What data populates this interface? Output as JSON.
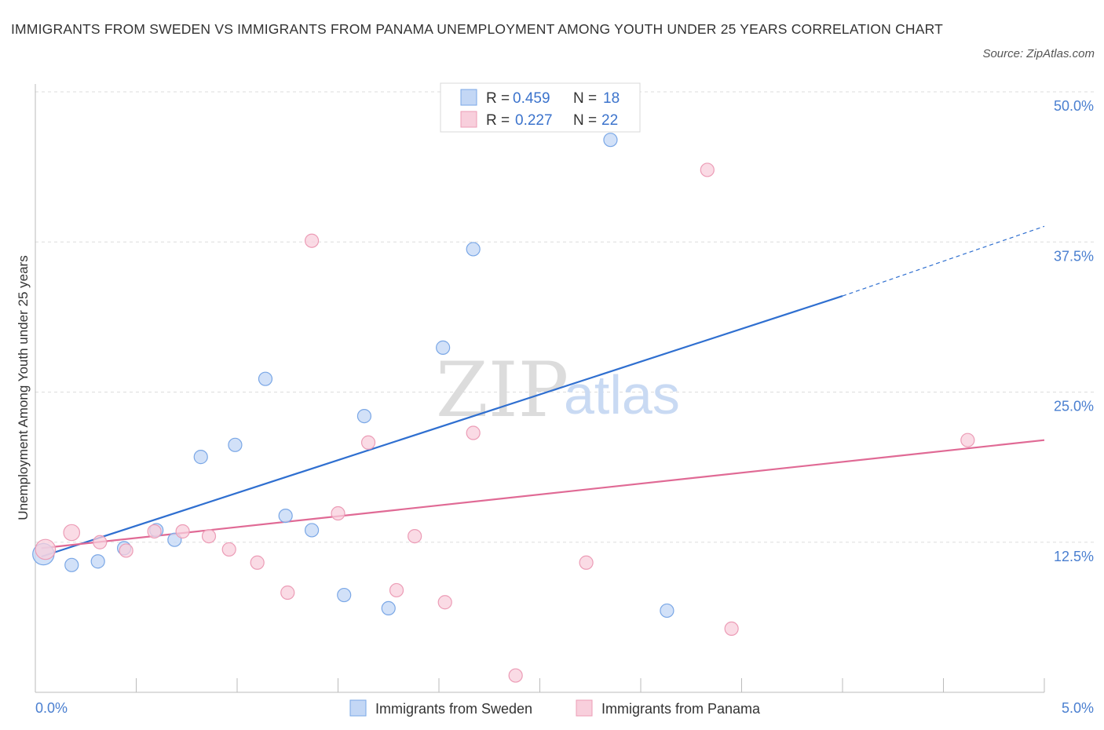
{
  "title": "IMMIGRANTS FROM SWEDEN VS IMMIGRANTS FROM PANAMA UNEMPLOYMENT AMONG YOUTH UNDER 25 YEARS CORRELATION CHART",
  "source": "Source: ZipAtlas.com",
  "watermark": {
    "zip": "ZIP",
    "atlas": "atlas"
  },
  "chart_data": {
    "type": "scatter",
    "title": "IMMIGRANTS FROM SWEDEN VS IMMIGRANTS FROM PANAMA UNEMPLOYMENT AMONG YOUTH UNDER 25 YEARS CORRELATION CHART",
    "xlabel": "",
    "ylabel": "Unemployment Among Youth under 25 years",
    "xlim": [
      0,
      5
    ],
    "ylim": [
      0,
      50
    ],
    "x_tick_labels": [
      "0.0%",
      "5.0%"
    ],
    "y_ticks": [
      12.5,
      25,
      37.5,
      50
    ],
    "y_tick_labels": [
      "12.5%",
      "25.0%",
      "37.5%",
      "50.0%"
    ],
    "grid": true,
    "legend": {
      "position": "top-center",
      "entries": [
        {
          "r_label": "R =",
          "r_value": "0.459",
          "n_label": "N =",
          "n_value": "18"
        },
        {
          "r_label": "R =",
          "r_value": "0.227",
          "n_label": "N =",
          "n_value": "22"
        }
      ]
    },
    "series": [
      {
        "name": "Immigrants from Sweden",
        "color": "#7aa7e6",
        "fill": "#c3d7f5",
        "line_color": "#2f6fd0",
        "trend": {
          "x0": 0.03,
          "y0": 11.3,
          "x1": 4.0,
          "y1": 33.0,
          "dash_to_x": 5.0,
          "dash_to_y": 38.8
        },
        "points": [
          {
            "x": 0.04,
            "y": 11.5,
            "s": 1.6
          },
          {
            "x": 0.18,
            "y": 10.6,
            "s": 1.0
          },
          {
            "x": 0.31,
            "y": 10.9,
            "s": 1.0
          },
          {
            "x": 0.44,
            "y": 12.0,
            "s": 1.0
          },
          {
            "x": 0.6,
            "y": 13.5,
            "s": 1.0
          },
          {
            "x": 0.69,
            "y": 12.7,
            "s": 1.0
          },
          {
            "x": 0.82,
            "y": 19.6,
            "s": 1.0
          },
          {
            "x": 0.99,
            "y": 20.6,
            "s": 1.0
          },
          {
            "x": 1.14,
            "y": 26.1,
            "s": 1.0
          },
          {
            "x": 1.24,
            "y": 14.7,
            "s": 1.0
          },
          {
            "x": 1.37,
            "y": 13.5,
            "s": 1.0
          },
          {
            "x": 1.53,
            "y": 8.1,
            "s": 1.0
          },
          {
            "x": 1.63,
            "y": 23.0,
            "s": 1.0
          },
          {
            "x": 1.75,
            "y": 7.0,
            "s": 1.0
          },
          {
            "x": 2.02,
            "y": 28.7,
            "s": 1.0
          },
          {
            "x": 2.17,
            "y": 36.9,
            "s": 1.0
          },
          {
            "x": 2.85,
            "y": 46.0,
            "s": 1.0
          },
          {
            "x": 3.13,
            "y": 6.8,
            "s": 1.0
          }
        ]
      },
      {
        "name": "Immigrants from Panama",
        "color": "#ec9cb6",
        "fill": "#f8cfdc",
        "line_color": "#e06a95",
        "trend": {
          "x0": 0.03,
          "y0": 12.0,
          "x1": 5.0,
          "y1": 21.0
        },
        "points": [
          {
            "x": 0.05,
            "y": 11.9,
            "s": 1.5
          },
          {
            "x": 0.18,
            "y": 13.3,
            "s": 1.2
          },
          {
            "x": 0.32,
            "y": 12.5,
            "s": 1.0
          },
          {
            "x": 0.45,
            "y": 11.8,
            "s": 1.0
          },
          {
            "x": 0.59,
            "y": 13.4,
            "s": 1.0
          },
          {
            "x": 0.73,
            "y": 13.4,
            "s": 1.0
          },
          {
            "x": 0.86,
            "y": 13.0,
            "s": 1.0
          },
          {
            "x": 0.96,
            "y": 11.9,
            "s": 1.0
          },
          {
            "x": 1.1,
            "y": 10.8,
            "s": 1.0
          },
          {
            "x": 1.25,
            "y": 8.3,
            "s": 1.0
          },
          {
            "x": 1.37,
            "y": 37.6,
            "s": 1.0
          },
          {
            "x": 1.5,
            "y": 14.9,
            "s": 1.0
          },
          {
            "x": 1.65,
            "y": 20.8,
            "s": 1.0
          },
          {
            "x": 1.79,
            "y": 8.5,
            "s": 1.0
          },
          {
            "x": 1.88,
            "y": 13.0,
            "s": 1.0
          },
          {
            "x": 2.03,
            "y": 7.5,
            "s": 1.0
          },
          {
            "x": 2.17,
            "y": 21.6,
            "s": 1.0
          },
          {
            "x": 2.38,
            "y": 1.4,
            "s": 1.0
          },
          {
            "x": 2.73,
            "y": 10.8,
            "s": 1.0
          },
          {
            "x": 3.33,
            "y": 43.5,
            "s": 1.0
          },
          {
            "x": 3.45,
            "y": 5.3,
            "s": 1.0
          },
          {
            "x": 4.62,
            "y": 21.0,
            "s": 1.0
          }
        ]
      }
    ]
  }
}
